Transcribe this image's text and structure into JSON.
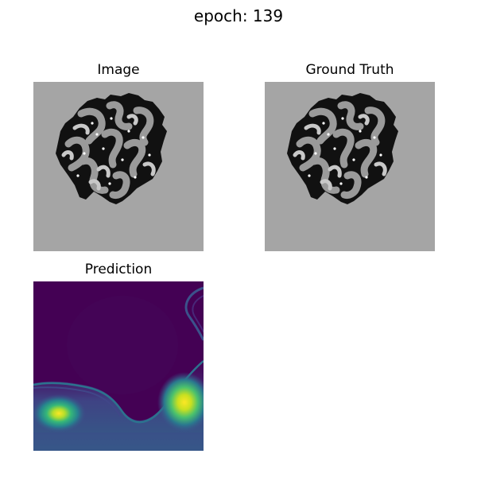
{
  "figure": {
    "title": "epoch: 139"
  },
  "panels": [
    {
      "title": "Image",
      "content": "brain-mri-slice",
      "colormap": "gray"
    },
    {
      "title": "Ground Truth",
      "content": "brain-mri-slice",
      "colormap": "gray"
    },
    {
      "title": "Prediction",
      "content": "prediction-heatmap",
      "colormap": "viridis"
    }
  ],
  "colors": {
    "background_gray": "#a5a5a5",
    "viridis_low": "#440154",
    "viridis_mid": "#21918c",
    "viridis_high": "#fde725"
  }
}
